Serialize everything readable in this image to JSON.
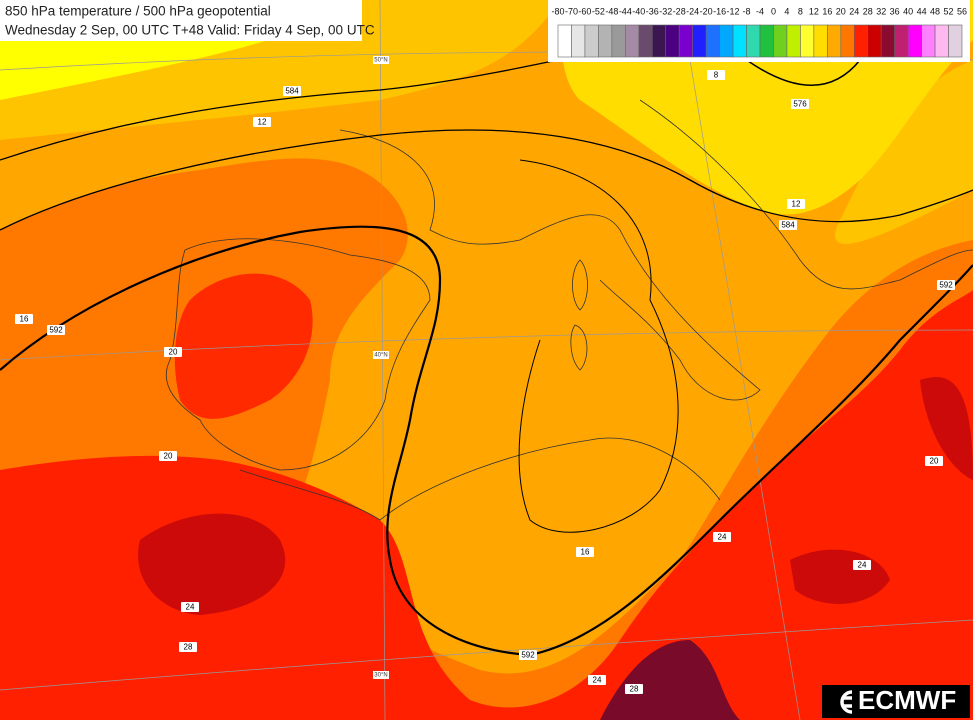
{
  "header": {
    "title": "850 hPa temperature / 500 hPa geopotential",
    "subtitle": "Wednesday 2 Sep, 00 UTC T+48 Valid: Friday 4 Sep, 00 UTC"
  },
  "colorbar": {
    "labels": [
      -80,
      -70,
      -60,
      -52,
      -48,
      -44,
      -40,
      -36,
      -32,
      -28,
      -24,
      -20,
      -16,
      -12,
      -8,
      -4,
      0,
      4,
      8,
      12,
      16,
      20,
      24,
      28,
      32,
      36,
      40,
      44,
      48,
      52,
      56
    ]
  },
  "contour_labels": [
    584,
    12,
    576,
    12,
    584,
    592,
    16,
    20,
    20,
    24,
    28,
    16,
    24,
    592,
    20,
    24,
    24,
    28,
    592,
    8
  ],
  "latitude_labels": [
    "50°N",
    "40°N",
    "30°N"
  ],
  "logo": {
    "text": "ECMWF"
  }
}
